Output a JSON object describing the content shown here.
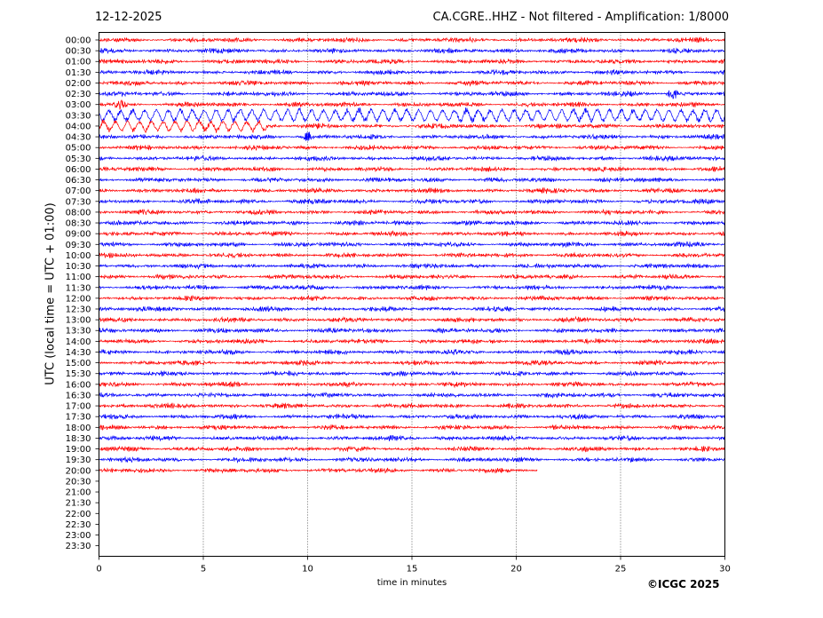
{
  "header": {
    "date": "12-12-2025",
    "title": "CA.CGRE..HHZ - Not filtered - Amplification: 1/8000"
  },
  "footer": {
    "copyright": "©ICGC 2025"
  },
  "chart_data": {
    "type": "line",
    "title": "CA.CGRE..HHZ - Not filtered - Amplification: 1/8000",
    "xlabel": "time in minutes",
    "ylabel": "UTC (local time = UTC + 01:00)",
    "xlim": [
      0,
      30
    ],
    "x_ticks": [
      "0",
      "5",
      "10",
      "15",
      "20",
      "25",
      "30"
    ],
    "vertical_gridlines_at": [
      5,
      10,
      15,
      20,
      25
    ],
    "grid": "vertical dotted",
    "row_labels": [
      "00:00",
      "00:30",
      "01:00",
      "01:30",
      "02:00",
      "02:30",
      "03:00",
      "03:30",
      "04:00",
      "04:30",
      "05:00",
      "05:30",
      "06:00",
      "06:30",
      "07:00",
      "07:30",
      "08:00",
      "08:30",
      "09:00",
      "09:30",
      "10:00",
      "10:30",
      "11:00",
      "11:30",
      "12:00",
      "12:30",
      "13:00",
      "13:30",
      "14:00",
      "14:30",
      "15:00",
      "15:30",
      "16:00",
      "16:30",
      "17:00",
      "17:30",
      "18:00",
      "18:30",
      "19:00",
      "19:30",
      "20:00",
      "20:30",
      "21:00",
      "21:30",
      "22:00",
      "22:30",
      "23:00",
      "23:30"
    ],
    "trace_colors": [
      "#ff0000",
      "#0000ff"
    ],
    "recorded_rows": 41,
    "last_row_end_minutes": 21,
    "events": [
      {
        "row": "02:30",
        "minute": 27.5,
        "note": "short burst"
      },
      {
        "row": "03:00",
        "minute": 1.0,
        "note": "burst"
      },
      {
        "row": "03:30",
        "minute_range": [
          0,
          30
        ],
        "note": "large amplitude oscillation"
      },
      {
        "row": "04:00",
        "minute_range": [
          0,
          8
        ],
        "note": "large amplitude oscillation"
      },
      {
        "row": "04:30",
        "minute": 10.0,
        "note": "spike"
      }
    ]
  }
}
